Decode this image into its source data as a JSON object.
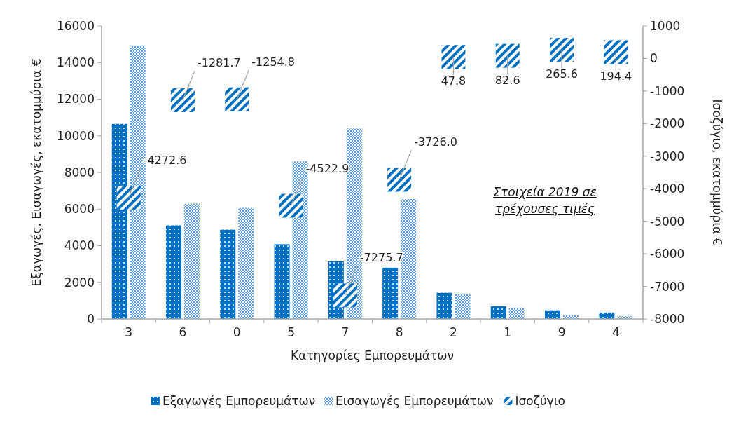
{
  "chart_data": {
    "type": "bar",
    "xlabel": "Κατηγορίες Εμπορευμάτων",
    "ylabel": "Εξαγωγές. Εισαγωγές, εκατομμύρια €",
    "y2label": "Ισοζύγιο, εκατομμύρια €",
    "categories": [
      "3",
      "6",
      "0",
      "5",
      "7",
      "8",
      "2",
      "1",
      "9",
      "4"
    ],
    "series": [
      {
        "name": "Εξαγωγές Εμπορευμάτων",
        "color": "#0070c0",
        "values": [
          10650,
          5110,
          4880,
          4080,
          3150,
          2800,
          1430,
          690,
          470,
          350
        ]
      },
      {
        "name": "Εισαγωγές Εμπορευμάτων",
        "color": "#5b9bd5",
        "values": [
          14930,
          6290,
          6060,
          8610,
          10400,
          6550,
          1370,
          600,
          220,
          150
        ]
      },
      {
        "name": "Ισοζύγιο",
        "type": "scatter",
        "axis": "y2",
        "marker": "square",
        "color": "#0070c0",
        "data_labels": true,
        "values": [
          -4272.6,
          -1281.7,
          -1254.8,
          -4522.9,
          -7275.7,
          -3726.0,
          47.8,
          82.6,
          265.6,
          194.4
        ],
        "value_labels": [
          "-4272.6",
          "-1281.7",
          "-1254.8",
          "-4522.9",
          "-7275.7",
          "-3726.0",
          "47.8",
          "82.6",
          "265.6",
          "194.4"
        ]
      }
    ],
    "ylim": [
      0,
      16000
    ],
    "yticks": [
      0,
      2000,
      4000,
      6000,
      8000,
      10000,
      12000,
      14000,
      16000
    ],
    "y2lim": [
      -8000,
      1000
    ],
    "y2ticks": [
      -8000,
      -7000,
      -6000,
      -5000,
      -4000,
      -3000,
      -2000,
      -1000,
      0,
      1000
    ],
    "annotations": [
      "Στοιχεία 2019 σε τρέχουσες τιμές"
    ],
    "grid": false,
    "legend": "bottom"
  }
}
